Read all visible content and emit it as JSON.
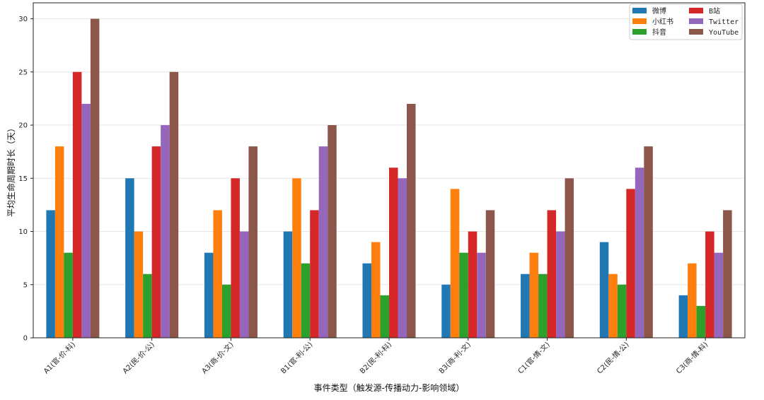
{
  "chart_data": {
    "type": "bar",
    "xlabel": "事件类型（触发源-传播动力-影响领域）",
    "ylabel": "平均生命周期时长（天）",
    "ylim": [
      0,
      31.5
    ],
    "yticks": [
      0,
      5,
      10,
      15,
      20,
      25,
      30
    ],
    "grid": "y",
    "legend_position": "top-right",
    "categories": [
      "A1(官-价-科)",
      "A2(民-价-公)",
      "A3(商-价-文)",
      "B1(官-利-公)",
      "B2(民-利-科)",
      "B3(商-利-文)",
      "C1(官-情-文)",
      "C2(民-情-公)",
      "C3(商-情-科)"
    ],
    "series": [
      {
        "name": "微博",
        "color": "#1f77b4",
        "values": [
          12,
          15,
          8,
          10,
          7,
          5,
          6,
          9,
          4
        ]
      },
      {
        "name": "小红书",
        "color": "#ff7f0e",
        "values": [
          18,
          10,
          12,
          15,
          9,
          14,
          8,
          6,
          7
        ]
      },
      {
        "name": "抖音",
        "color": "#2ca02c",
        "values": [
          8,
          6,
          5,
          7,
          4,
          8,
          6,
          5,
          3
        ]
      },
      {
        "name": "B站",
        "color": "#d62728",
        "values": [
          25,
          18,
          15,
          12,
          16,
          10,
          12,
          14,
          10
        ]
      },
      {
        "name": "Twitter",
        "color": "#9467bd",
        "values": [
          22,
          20,
          10,
          18,
          15,
          8,
          10,
          16,
          8
        ]
      },
      {
        "name": "YouTube",
        "color": "#8c564b",
        "values": [
          30,
          25,
          18,
          20,
          22,
          12,
          15,
          18,
          12
        ]
      }
    ]
  }
}
